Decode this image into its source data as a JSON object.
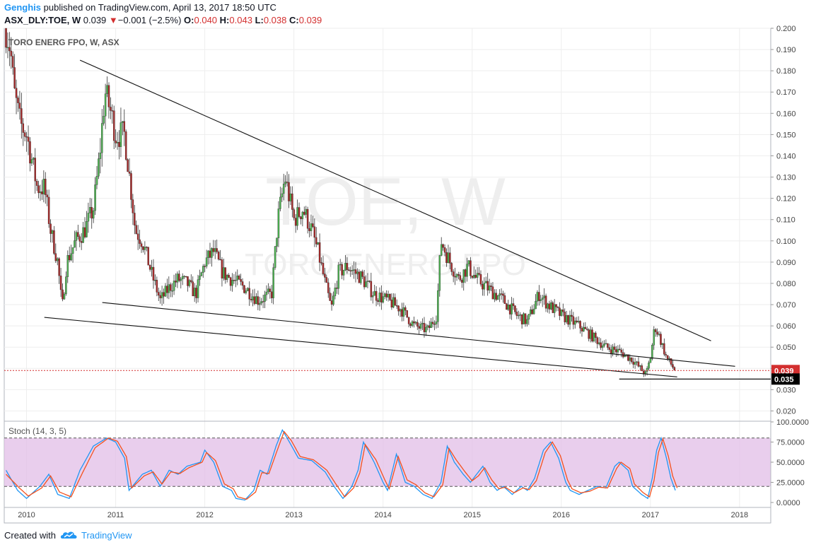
{
  "header": {
    "author": "Genghis",
    "published_text": "published on TradingView.com, April 13, 2017 18:50 UTC",
    "symbol": "ASX_DLY:TOE, W",
    "last": "0.039",
    "change_arrow": "▼",
    "change": "−0.001 (−2.5%)",
    "o_label": "O:",
    "o_value": "0.040",
    "h_label": "H:",
    "h_value": "0.043",
    "l_label": "L:",
    "l_value": "0.038",
    "c_label": "C:",
    "c_value": "0.039"
  },
  "footer": {
    "created_with": "Created with",
    "brand": "TradingView",
    "brand_icon": "tradingview-cloud-icon"
  },
  "chart_data": [
    {
      "type": "candlestick",
      "title": "TORO ENERG FPO, W, ASX",
      "watermark_symbol": "TOE, W",
      "watermark_name": "TORO ENERG FPO",
      "x_ticks": [
        "2010",
        "2011",
        "2012",
        "2013",
        "2014",
        "2015",
        "2016",
        "2017",
        "2018"
      ],
      "x_range": [
        2009.75,
        2018.35
      ],
      "y_ticks": [
        "0.200",
        "0.190",
        "0.180",
        "0.170",
        "0.160",
        "0.150",
        "0.140",
        "0.130",
        "0.120",
        "0.110",
        "0.100",
        "0.090",
        "0.080",
        "0.070",
        "0.060",
        "0.050",
        "0.040",
        "0.030",
        "0.020"
      ],
      "ylim": [
        0.0155,
        0.2
      ],
      "last_price": {
        "value": 0.039,
        "label": "0.039",
        "color": "#d32f2f"
      },
      "level_marker": {
        "value": 0.035,
        "label": "0.035",
        "x_from": 2016.65,
        "x_to": 2018.0
      },
      "anchors": [
        [
          2009.77,
          0.2
        ],
        [
          2009.82,
          0.19
        ],
        [
          2009.86,
          0.17
        ],
        [
          2009.93,
          0.155
        ],
        [
          2010.0,
          0.15
        ],
        [
          2010.05,
          0.14
        ],
        [
          2010.12,
          0.125
        ],
        [
          2010.2,
          0.125
        ],
        [
          2010.27,
          0.105
        ],
        [
          2010.35,
          0.09
        ],
        [
          2010.4,
          0.068
        ],
        [
          2010.45,
          0.09
        ],
        [
          2010.55,
          0.1
        ],
        [
          2010.65,
          0.105
        ],
        [
          2010.75,
          0.115
        ],
        [
          2010.82,
          0.14
        ],
        [
          2010.88,
          0.17
        ],
        [
          2010.95,
          0.16
        ],
        [
          2011.0,
          0.15
        ],
        [
          2011.1,
          0.15
        ],
        [
          2011.17,
          0.125
        ],
        [
          2011.22,
          0.105
        ],
        [
          2011.3,
          0.1
        ],
        [
          2011.4,
          0.085
        ],
        [
          2011.5,
          0.072
        ],
        [
          2011.6,
          0.078
        ],
        [
          2011.7,
          0.082
        ],
        [
          2011.8,
          0.08
        ],
        [
          2011.9,
          0.075
        ],
        [
          2012.0,
          0.09
        ],
        [
          2012.1,
          0.095
        ],
        [
          2012.2,
          0.085
        ],
        [
          2012.3,
          0.082
        ],
        [
          2012.45,
          0.078
        ],
        [
          2012.6,
          0.072
        ],
        [
          2012.75,
          0.075
        ],
        [
          2012.82,
          0.11
        ],
        [
          2012.9,
          0.13
        ],
        [
          2013.0,
          0.11
        ],
        [
          2013.1,
          0.115
        ],
        [
          2013.2,
          0.105
        ],
        [
          2013.27,
          0.095
        ],
        [
          2013.35,
          0.08
        ],
        [
          2013.42,
          0.068
        ],
        [
          2013.5,
          0.085
        ],
        [
          2013.6,
          0.088
        ],
        [
          2013.75,
          0.083
        ],
        [
          2013.9,
          0.075
        ],
        [
          2014.05,
          0.072
        ],
        [
          2014.2,
          0.068
        ],
        [
          2014.35,
          0.06
        ],
        [
          2014.5,
          0.058
        ],
        [
          2014.6,
          0.065
        ],
        [
          2014.65,
          0.1
        ],
        [
          2014.75,
          0.09
        ],
        [
          2014.85,
          0.082
        ],
        [
          2014.95,
          0.088
        ],
        [
          2015.05,
          0.082
        ],
        [
          2015.2,
          0.077
        ],
        [
          2015.35,
          0.072
        ],
        [
          2015.5,
          0.065
        ],
        [
          2015.62,
          0.062
        ],
        [
          2015.75,
          0.075
        ],
        [
          2015.85,
          0.07
        ],
        [
          2016.0,
          0.065
        ],
        [
          2016.2,
          0.06
        ],
        [
          2016.35,
          0.055
        ],
        [
          2016.5,
          0.05
        ],
        [
          2016.65,
          0.048
        ],
        [
          2016.8,
          0.044
        ],
        [
          2016.95,
          0.037
        ],
        [
          2017.0,
          0.045
        ],
        [
          2017.05,
          0.06
        ],
        [
          2017.1,
          0.055
        ],
        [
          2017.18,
          0.045
        ],
        [
          2017.28,
          0.039
        ]
      ],
      "trendlines": [
        {
          "name": "upper",
          "from": [
            2010.6,
            0.185
          ],
          "to": [
            2017.68,
            0.053
          ]
        },
        {
          "name": "lower",
          "from": [
            2010.2,
            0.064
          ],
          "to": [
            2017.3,
            0.036
          ]
        },
        {
          "name": "middle",
          "from": [
            2010.85,
            0.071
          ],
          "to": [
            2017.95,
            0.041
          ]
        }
      ]
    },
    {
      "type": "line",
      "title": "Stoch (14, 3, 5)",
      "y_ticks": [
        "100.0000",
        "75.0000",
        "50.0000",
        "25.0000",
        "0.0000"
      ],
      "ylim": [
        0,
        100
      ],
      "band": [
        20,
        80
      ],
      "band_color": "#e1bee7",
      "series": [
        {
          "name": "%K",
          "color": "#2196f3",
          "anchors": [
            [
              2009.77,
              40
            ],
            [
              2009.9,
              15
            ],
            [
              2010.0,
              5
            ],
            [
              2010.15,
              20
            ],
            [
              2010.25,
              35
            ],
            [
              2010.35,
              10
            ],
            [
              2010.48,
              5
            ],
            [
              2010.6,
              40
            ],
            [
              2010.75,
              70
            ],
            [
              2010.9,
              80
            ],
            [
              2011.0,
              75
            ],
            [
              2011.1,
              55
            ],
            [
              2011.15,
              15
            ],
            [
              2011.3,
              35
            ],
            [
              2011.4,
              40
            ],
            [
              2011.5,
              20
            ],
            [
              2011.6,
              40
            ],
            [
              2011.7,
              35
            ],
            [
              2011.8,
              45
            ],
            [
              2011.95,
              50
            ],
            [
              2012.0,
              65
            ],
            [
              2012.1,
              50
            ],
            [
              2012.2,
              20
            ],
            [
              2012.3,
              15
            ],
            [
              2012.35,
              5
            ],
            [
              2012.45,
              3
            ],
            [
              2012.55,
              15
            ],
            [
              2012.62,
              40
            ],
            [
              2012.7,
              35
            ],
            [
              2012.8,
              70
            ],
            [
              2012.87,
              90
            ],
            [
              2012.95,
              75
            ],
            [
              2013.05,
              55
            ],
            [
              2013.2,
              52
            ],
            [
              2013.35,
              38
            ],
            [
              2013.45,
              20
            ],
            [
              2013.55,
              5
            ],
            [
              2013.65,
              20
            ],
            [
              2013.72,
              40
            ],
            [
              2013.78,
              75
            ],
            [
              2013.9,
              50
            ],
            [
              2014.0,
              25
            ],
            [
              2014.05,
              15
            ],
            [
              2014.15,
              60
            ],
            [
              2014.25,
              25
            ],
            [
              2014.35,
              20
            ],
            [
              2014.45,
              10
            ],
            [
              2014.55,
              5
            ],
            [
              2014.65,
              25
            ],
            [
              2014.72,
              70
            ],
            [
              2014.8,
              50
            ],
            [
              2014.9,
              35
            ],
            [
              2014.98,
              25
            ],
            [
              2015.05,
              35
            ],
            [
              2015.12,
              45
            ],
            [
              2015.2,
              25
            ],
            [
              2015.28,
              15
            ],
            [
              2015.35,
              20
            ],
            [
              2015.45,
              10
            ],
            [
              2015.55,
              20
            ],
            [
              2015.62,
              15
            ],
            [
              2015.7,
              30
            ],
            [
              2015.8,
              65
            ],
            [
              2015.88,
              75
            ],
            [
              2015.97,
              55
            ],
            [
              2016.05,
              25
            ],
            [
              2016.1,
              15
            ],
            [
              2016.2,
              10
            ],
            [
              2016.3,
              15
            ],
            [
              2016.4,
              20
            ],
            [
              2016.5,
              18
            ],
            [
              2016.6,
              45
            ],
            [
              2016.65,
              50
            ],
            [
              2016.75,
              40
            ],
            [
              2016.8,
              20
            ],
            [
              2016.9,
              10
            ],
            [
              2016.97,
              5
            ],
            [
              2017.02,
              30
            ],
            [
              2017.07,
              65
            ],
            [
              2017.12,
              80
            ],
            [
              2017.18,
              55
            ],
            [
              2017.23,
              30
            ],
            [
              2017.28,
              15
            ]
          ]
        },
        {
          "name": "%D",
          "color": "#f4511e",
          "anchors": [
            [
              2009.77,
              35
            ],
            [
              2009.92,
              18
            ],
            [
              2010.02,
              8
            ],
            [
              2010.17,
              18
            ],
            [
              2010.27,
              33
            ],
            [
              2010.37,
              13
            ],
            [
              2010.5,
              7
            ],
            [
              2010.62,
              35
            ],
            [
              2010.77,
              68
            ],
            [
              2010.92,
              80
            ],
            [
              2011.02,
              76
            ],
            [
              2011.12,
              57
            ],
            [
              2011.18,
              18
            ],
            [
              2011.32,
              33
            ],
            [
              2011.42,
              38
            ],
            [
              2011.52,
              23
            ],
            [
              2011.62,
              38
            ],
            [
              2011.72,
              36
            ],
            [
              2011.82,
              43
            ],
            [
              2011.97,
              50
            ],
            [
              2012.02,
              62
            ],
            [
              2012.12,
              52
            ],
            [
              2012.22,
              23
            ],
            [
              2012.32,
              17
            ],
            [
              2012.37,
              7
            ],
            [
              2012.47,
              4
            ],
            [
              2012.57,
              13
            ],
            [
              2012.64,
              37
            ],
            [
              2012.72,
              36
            ],
            [
              2012.82,
              67
            ],
            [
              2012.89,
              88
            ],
            [
              2012.97,
              77
            ],
            [
              2013.07,
              57
            ],
            [
              2013.22,
              53
            ],
            [
              2013.37,
              40
            ],
            [
              2013.47,
              23
            ],
            [
              2013.57,
              7
            ],
            [
              2013.67,
              18
            ],
            [
              2013.74,
              37
            ],
            [
              2013.8,
              72
            ],
            [
              2013.92,
              53
            ],
            [
              2014.02,
              28
            ],
            [
              2014.07,
              17
            ],
            [
              2014.17,
              57
            ],
            [
              2014.27,
              28
            ],
            [
              2014.37,
              22
            ],
            [
              2014.47,
              12
            ],
            [
              2014.57,
              7
            ],
            [
              2014.67,
              22
            ],
            [
              2014.74,
              67
            ],
            [
              2014.82,
              53
            ],
            [
              2014.92,
              38
            ],
            [
              2015.0,
              27
            ],
            [
              2015.07,
              33
            ],
            [
              2015.14,
              43
            ],
            [
              2015.22,
              28
            ],
            [
              2015.3,
              17
            ],
            [
              2015.37,
              19
            ],
            [
              2015.47,
              12
            ],
            [
              2015.57,
              18
            ],
            [
              2015.64,
              16
            ],
            [
              2015.72,
              27
            ],
            [
              2015.82,
              62
            ],
            [
              2015.9,
              75
            ],
            [
              2015.99,
              58
            ],
            [
              2016.07,
              28
            ],
            [
              2016.12,
              17
            ],
            [
              2016.22,
              12
            ],
            [
              2016.32,
              14
            ],
            [
              2016.42,
              19
            ],
            [
              2016.52,
              18
            ],
            [
              2016.62,
              42
            ],
            [
              2016.67,
              50
            ],
            [
              2016.77,
              42
            ],
            [
              2016.82,
              23
            ],
            [
              2016.92,
              12
            ],
            [
              2016.99,
              7
            ],
            [
              2017.04,
              27
            ],
            [
              2017.09,
              62
            ],
            [
              2017.14,
              79
            ],
            [
              2017.2,
              58
            ],
            [
              2017.25,
              33
            ],
            [
              2017.3,
              18
            ]
          ]
        }
      ]
    }
  ],
  "colors": {
    "up_candle": "#4caf50",
    "down_candle": "#a52a2a",
    "wick": "#333333",
    "grid": "#eeeeee",
    "axis_text": "#444444",
    "trendline": "#111111",
    "level_marker_bg": "#000000",
    "k_line": "#2196f3",
    "d_line": "#f4511e"
  }
}
